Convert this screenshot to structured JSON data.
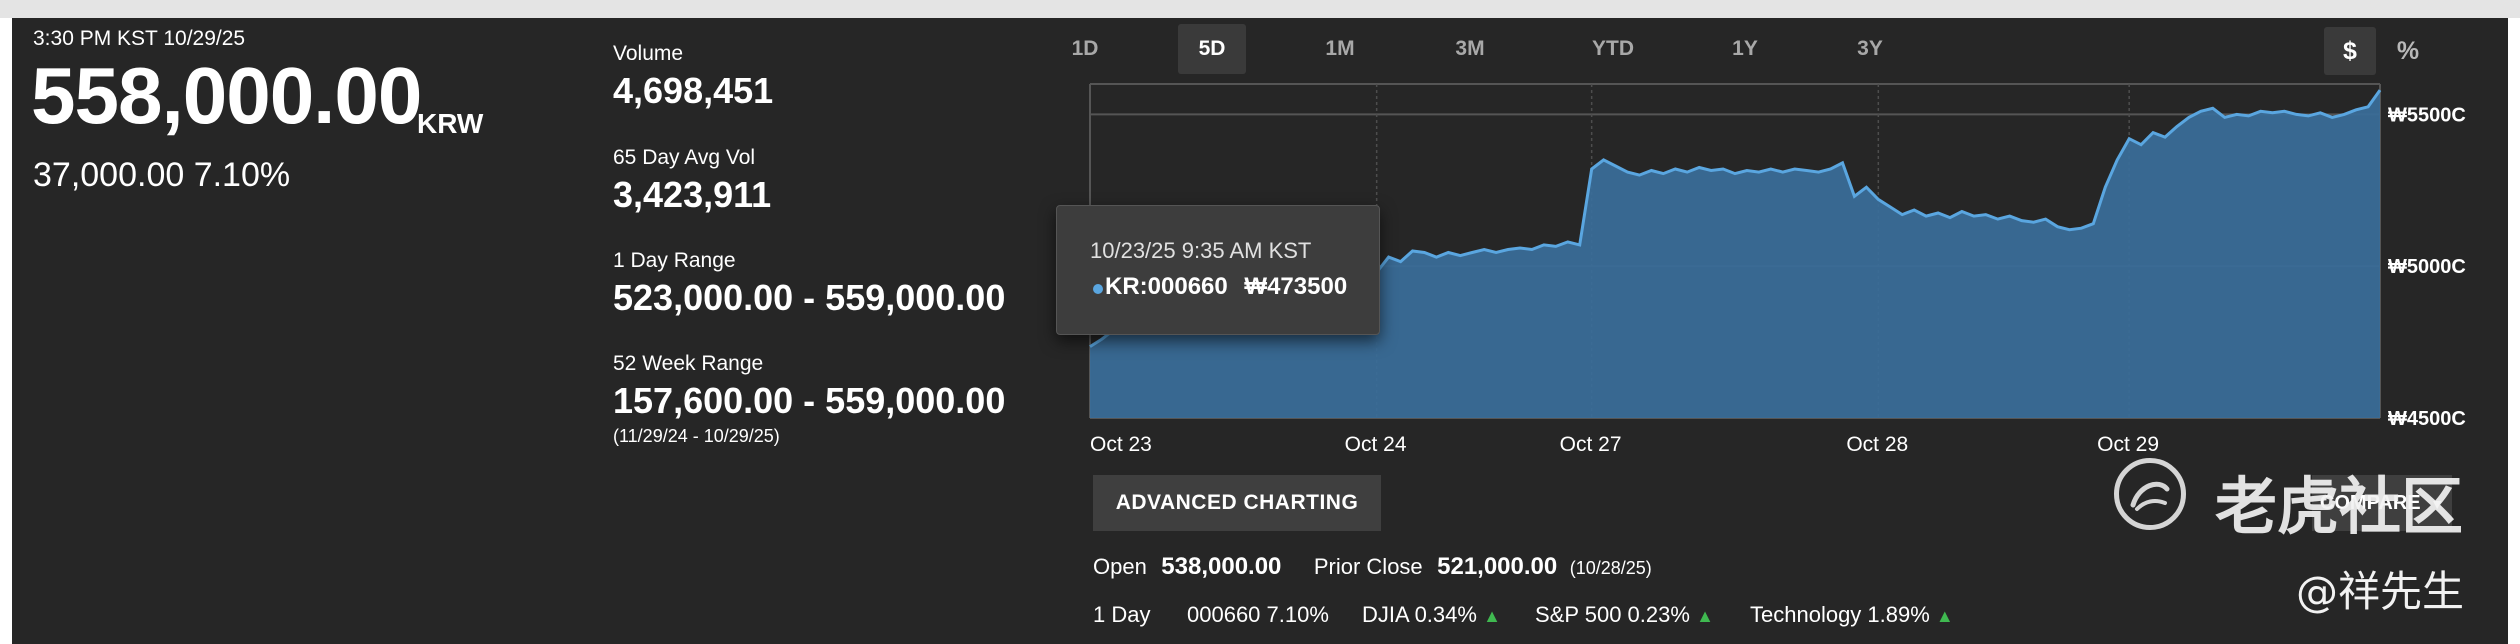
{
  "quote": {
    "timestamp": "3:30 PM KST 10/29/25",
    "price": "558,000.00",
    "currency": "KRW",
    "change": "37,000.00 7.10%"
  },
  "stats": {
    "volume_label": "Volume",
    "volume_value": "4,698,451",
    "avg_vol_label": "65 Day Avg Vol",
    "avg_vol_value": "3,423,911",
    "day_range_label": "1 Day Range",
    "day_range_value": "523,000.00 - 559,000.00",
    "week52_label": "52 Week Range",
    "week52_value": "157,600.00 - 559,000.00",
    "week52_dates": "(11/29/24 - 10/29/25)"
  },
  "range_tabs": [
    "1D",
    "5D",
    "1M",
    "3M",
    "YTD",
    "1Y",
    "3Y"
  ],
  "active_range": "5D",
  "unit_buttons": {
    "dollar": "$",
    "percent": "%"
  },
  "chart_data": {
    "type": "area",
    "x_ticks": [
      "Oct 23",
      "Oct 24",
      "Oct 27",
      "Oct 28",
      "Oct 29"
    ],
    "y_ticks": [
      "₩5500C",
      "₩5000C",
      "₩4500C"
    ],
    "y_tick_values": [
      550000,
      500000,
      450000
    ],
    "ylim": [
      450000,
      560000
    ],
    "series": [
      {
        "values": [
          473500,
          476000,
          479000,
          482500,
          481000,
          484000,
          486500,
          485500,
          488000,
          487000,
          489000,
          488500,
          490000,
          491500,
          489500,
          487500,
          485500,
          486500,
          484500,
          485500,
          484500,
          486500,
          485500,
          486000,
          498000,
          503000,
          501500,
          505000,
          504500,
          503000,
          504500,
          503500,
          504500,
          505500,
          504500,
          505500,
          506000,
          505500,
          507000,
          506500,
          508000,
          507000,
          532000,
          535000,
          533000,
          531000,
          530000,
          531500,
          530500,
          532000,
          531000,
          532500,
          531500,
          532000,
          530500,
          531500,
          531000,
          532000,
          531000,
          532000,
          531500,
          531000,
          532000,
          534000,
          523000,
          526000,
          522000,
          519500,
          517000,
          518500,
          516500,
          517500,
          516000,
          518000,
          516500,
          517000,
          515500,
          516500,
          515000,
          514500,
          515500,
          513000,
          512000,
          512500,
          514000,
          526000,
          535000,
          542000,
          540000,
          544000,
          542500,
          546000,
          549000,
          551000,
          552000,
          549000,
          550000,
          549500,
          551000,
          550500,
          551000,
          550000,
          549500,
          550500,
          549000,
          550000,
          551500,
          552500,
          558000
        ]
      }
    ],
    "series_color": "#5aa6e0",
    "fill_color": "#3a6e9a",
    "grid": true
  },
  "tooltip": {
    "time": "10/23/25 9:35 AM KST",
    "series": "KR:000660",
    "value": "₩473500"
  },
  "buttons": {
    "advanced_charting": "ADVANCED CHARTING",
    "compare": "COMPARE"
  },
  "info_row": {
    "open_label": "Open",
    "open_value": "538,000.00",
    "prior_close_label": "Prior Close",
    "prior_close_value": "521,000.00",
    "prior_close_date": "(10/28/25)"
  },
  "perf_row": {
    "label": "1 Day",
    "items": [
      {
        "text": "000660 7.10%",
        "arrow": false
      },
      {
        "text": "DJIA 0.34%",
        "arrow": true
      },
      {
        "text": "S&P 500 0.23%",
        "arrow": true
      },
      {
        "text": "Technology 1.89%",
        "arrow": true
      }
    ]
  },
  "watermark": {
    "text": "老虎社区",
    "author": "@祥先生"
  }
}
